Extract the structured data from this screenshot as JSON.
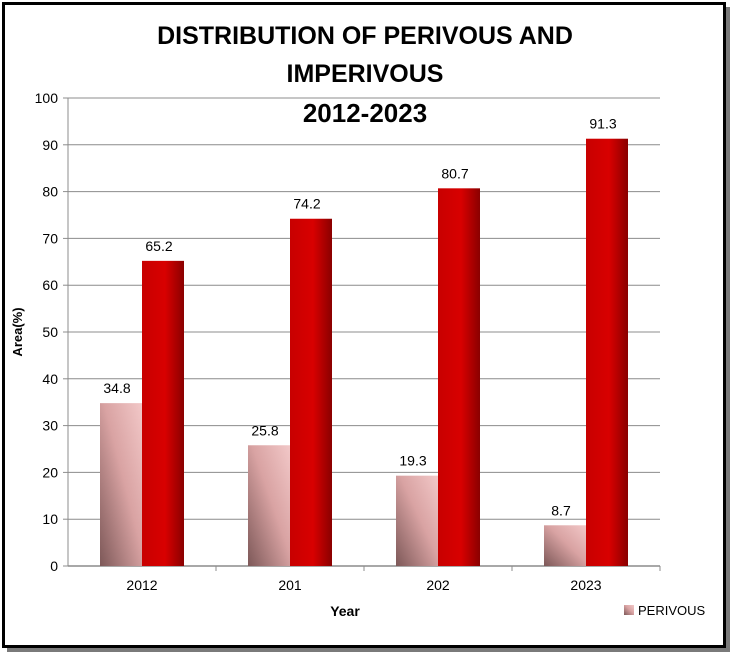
{
  "chart_data": {
    "type": "bar",
    "title_lines": [
      "DISTRIBUTION OF PERIVOUS AND",
      "IMPERIVOUS",
      "2012-2023"
    ],
    "xlabel": "Year",
    "ylabel": "Area(%)",
    "categories": [
      "2012",
      "201",
      "202",
      "2023"
    ],
    "ylim": [
      0,
      100
    ],
    "yticks": [
      0,
      10,
      20,
      30,
      40,
      50,
      60,
      70,
      80,
      90,
      100
    ],
    "grid": true,
    "legend_position": "bottom-right",
    "series": [
      {
        "name": "PERIVOUS",
        "values": [
          34.8,
          25.8,
          19.3,
          8.7
        ],
        "color": "#e8b4b4",
        "color_dark": "#8c6262",
        "in_legend": true
      },
      {
        "values": [
          65.2,
          74.2,
          80.7,
          91.3
        ],
        "color": "#d40000",
        "color_dark": "#8a0000",
        "in_legend": false
      }
    ]
  }
}
